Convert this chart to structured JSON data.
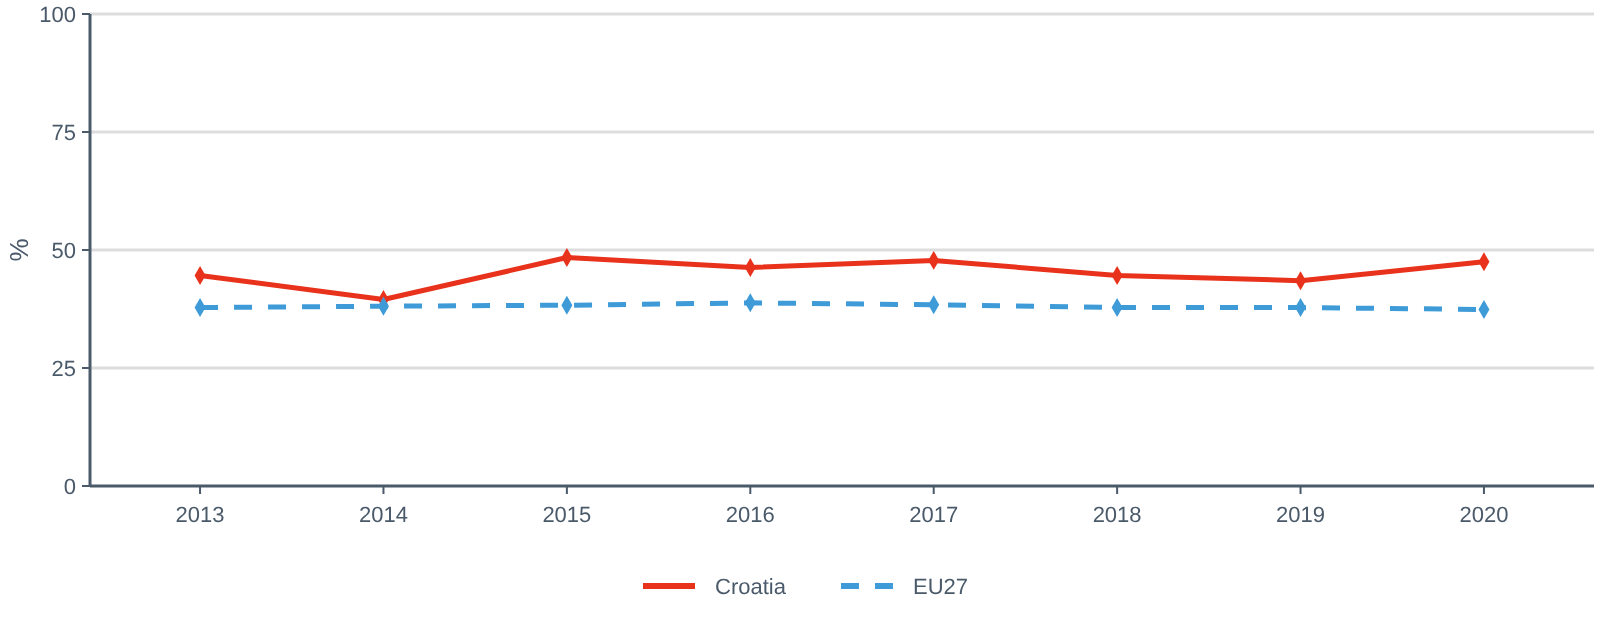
{
  "chart_data": {
    "type": "line",
    "ylabel": "%",
    "categories": [
      "2013",
      "2014",
      "2015",
      "2016",
      "2017",
      "2018",
      "2019",
      "2020"
    ],
    "series": [
      {
        "name": "Croatia",
        "color": "#e8321c",
        "line_style": "solid",
        "values": [
          44.6,
          39.5,
          48.4,
          46.3,
          47.8,
          44.6,
          43.5,
          47.5
        ]
      },
      {
        "name": "EU27",
        "color": "#3f9bd8",
        "line_style": "dashed",
        "values": [
          37.8,
          38.1,
          38.3,
          38.8,
          38.4,
          37.8,
          37.8,
          37.4
        ]
      }
    ],
    "ylim": [
      0,
      100
    ],
    "yticks": [
      0,
      25,
      50,
      75,
      100
    ],
    "grid": "y",
    "legend": "bottom",
    "marker": "diamond"
  }
}
